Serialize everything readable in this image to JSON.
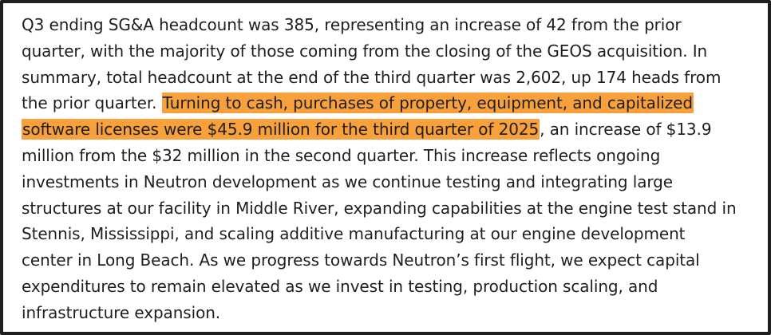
{
  "document": {
    "lines": [
      [
        {
          "text": "Q3 ending SG&A headcount was 385, representing an increase of 42 from the prior",
          "highlight": false
        }
      ],
      [
        {
          "text": "quarter, with the majority of those coming from the closing of the GEOS acquisition. In",
          "highlight": false
        }
      ],
      [
        {
          "text": "summary, total headcount at the end of the third quarter was 2,602, up 174 heads from",
          "highlight": false
        }
      ],
      [
        {
          "text": "the prior quarter. ",
          "highlight": false
        },
        {
          "text": "Turning to cash, purchases of property, equipment, and capitalized",
          "highlight": true
        }
      ],
      [
        {
          "text": "software licenses were $45.9 million for the third quarter of 2025",
          "highlight": true
        },
        {
          "text": ", an increase of $13.9",
          "highlight": false
        }
      ],
      [
        {
          "text": "million from the $32 million in the second quarter. This increase reflects ongoing",
          "highlight": false
        }
      ],
      [
        {
          "text": "investments in Neutron development as we continue testing and integrating large",
          "highlight": false
        }
      ],
      [
        {
          "text": "structures at our facility in Middle River, expanding capabilities at the engine test stand in",
          "highlight": false
        }
      ],
      [
        {
          "text": "Stennis, Mississippi, and scaling additive manufacturing at our engine development",
          "highlight": false
        }
      ],
      [
        {
          "text": "center in Long Beach. As we progress towards Neutron’s first flight, we expect capital",
          "highlight": false
        }
      ],
      [
        {
          "text": "expenditures to remain elevated as we invest in testing, production scaling, and",
          "highlight": false
        }
      ],
      [
        {
          "text": "infrastructure expansion.",
          "highlight": false
        }
      ]
    ],
    "highlight_color": "#f7a03c",
    "text_color": "#1f1f1f",
    "border_color": "#1f1f1f"
  }
}
